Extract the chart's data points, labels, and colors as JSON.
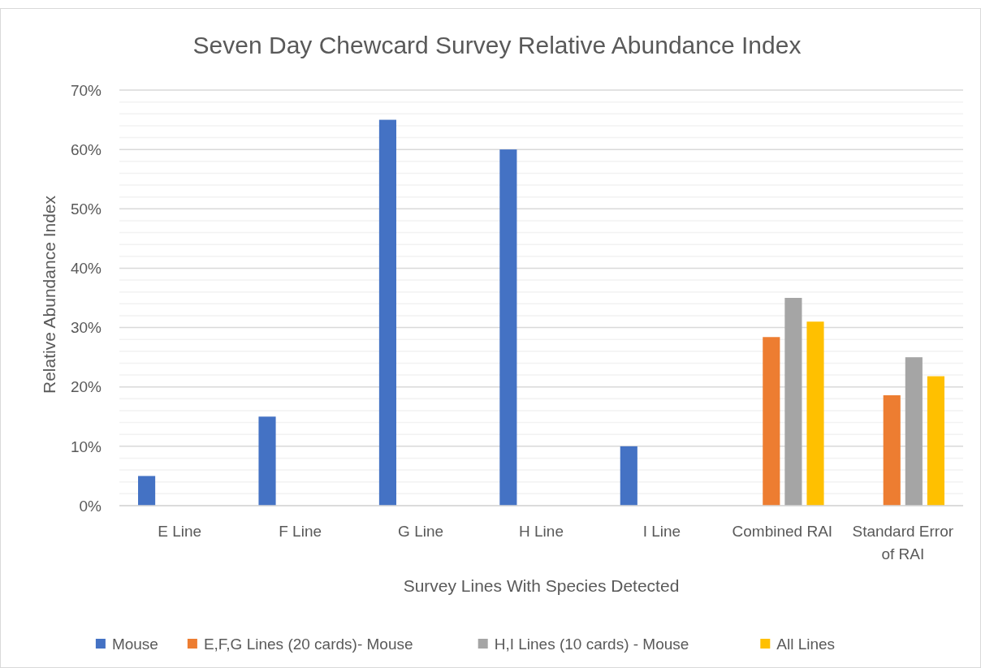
{
  "chart_data": {
    "type": "bar",
    "title": "Seven Day Chewcard Survey Relative Abundance Index",
    "xlabel": "Survey Lines With Species Detected",
    "ylabel": "Relative Abundance Index",
    "categories": [
      "E Line",
      "F Line",
      "G Line",
      "H Line",
      "I Line",
      "Combined RAI",
      "Standard Error of RAI"
    ],
    "series": [
      {
        "name": "Mouse",
        "color": "#4472c4",
        "values": [
          5,
          15,
          65,
          60,
          10,
          null,
          null
        ]
      },
      {
        "name": "E,F,G Lines (20 cards)- Mouse",
        "color": "#ed7d31",
        "values": [
          null,
          null,
          null,
          null,
          null,
          28.4,
          18.6
        ]
      },
      {
        "name": "H,I Lines (10 cards) - Mouse",
        "color": "#a5a5a5",
        "values": [
          null,
          null,
          null,
          null,
          null,
          35,
          25
        ]
      },
      {
        "name": "All Lines",
        "color": "#ffc000",
        "values": [
          null,
          null,
          null,
          null,
          null,
          31,
          21.8
        ]
      }
    ],
    "ylim": [
      0,
      70
    ],
    "yticks": [
      {
        "value": 0,
        "label": "0%"
      },
      {
        "value": 2,
        "label": null
      },
      {
        "value": 4,
        "label": null
      },
      {
        "value": 6,
        "label": null
      },
      {
        "value": 8,
        "label": null
      },
      {
        "value": 10,
        "label": "10%"
      },
      {
        "value": 12,
        "label": null
      },
      {
        "value": 14,
        "label": null
      },
      {
        "value": 16,
        "label": null
      },
      {
        "value": 18,
        "label": null
      },
      {
        "value": 20,
        "label": "20%"
      },
      {
        "value": 22,
        "label": null
      },
      {
        "value": 24,
        "label": null
      },
      {
        "value": 26,
        "label": null
      },
      {
        "value": 28,
        "label": null
      },
      {
        "value": 30,
        "label": "30%"
      },
      {
        "value": 32,
        "label": null
      },
      {
        "value": 34,
        "label": null
      },
      {
        "value": 36,
        "label": null
      },
      {
        "value": 38,
        "label": null
      },
      {
        "value": 40,
        "label": "40%"
      },
      {
        "value": 42,
        "label": null
      },
      {
        "value": 44,
        "label": null
      },
      {
        "value": 46,
        "label": null
      },
      {
        "value": 48,
        "label": null
      },
      {
        "value": 50,
        "label": "50%"
      },
      {
        "value": 52,
        "label": null
      },
      {
        "value": 54,
        "label": null
      },
      {
        "value": 56,
        "label": null
      },
      {
        "value": 58,
        "label": null
      },
      {
        "value": 60,
        "label": "60%"
      },
      {
        "value": 62,
        "label": null
      },
      {
        "value": 64,
        "label": null
      },
      {
        "value": 66,
        "label": null
      },
      {
        "value": 68,
        "label": null
      },
      {
        "value": 70,
        "label": "70%"
      }
    ],
    "grid": "y",
    "legend": "bottom"
  }
}
